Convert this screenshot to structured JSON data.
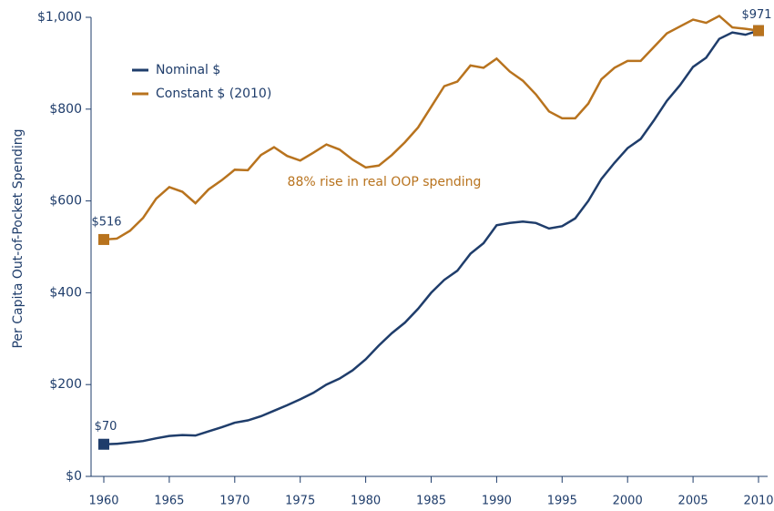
{
  "chart_data": {
    "type": "line",
    "y_label": "Per Capita Out-of-Pocket Spending",
    "x": [
      1960,
      1961,
      1962,
      1963,
      1964,
      1965,
      1966,
      1967,
      1968,
      1969,
      1970,
      1971,
      1972,
      1973,
      1974,
      1975,
      1976,
      1977,
      1978,
      1979,
      1980,
      1981,
      1982,
      1983,
      1984,
      1985,
      1986,
      1987,
      1988,
      1989,
      1990,
      1991,
      1992,
      1993,
      1994,
      1995,
      1996,
      1997,
      1998,
      1999,
      2000,
      2001,
      2002,
      2003,
      2004,
      2005,
      2006,
      2007,
      2008,
      2009,
      2010
    ],
    "series": [
      {
        "name": "Nominal $",
        "color": "#1f3d6b",
        "values": [
          70,
          71,
          74,
          77,
          83,
          88,
          90,
          89,
          98,
          107,
          117,
          122,
          131,
          143,
          155,
          168,
          182,
          200,
          213,
          231,
          255,
          285,
          312,
          335,
          365,
          400,
          428,
          448,
          485,
          508,
          547,
          552,
          555,
          552,
          540,
          545,
          562,
          600,
          648,
          683,
          715,
          735,
          775,
          818,
          852,
          892,
          912,
          953,
          967,
          962,
          971
        ]
      },
      {
        "name": "Constant $ (2010)",
        "color": "#b8731e",
        "values": [
          516,
          518,
          535,
          563,
          605,
          630,
          620,
          595,
          625,
          645,
          668,
          667,
          700,
          717,
          698,
          688,
          705,
          723,
          712,
          690,
          673,
          677,
          700,
          728,
          760,
          805,
          850,
          860,
          895,
          890,
          910,
          882,
          862,
          832,
          795,
          780,
          780,
          812,
          865,
          890,
          905,
          905,
          935,
          965,
          980,
          995,
          988,
          1003,
          978,
          975,
          971
        ]
      }
    ],
    "annotations": [
      "$516",
      "$70",
      "$971",
      "88% rise in real OOP spending"
    ],
    "xlim": [
      1960,
      2010
    ],
    "xticks": [
      1960,
      1965,
      1970,
      1975,
      1980,
      1985,
      1990,
      1995,
      2000,
      2005,
      2010
    ],
    "ylim": [
      0,
      1000
    ],
    "yticks": [
      {
        "value": 0,
        "label": "$0"
      },
      {
        "value": 200,
        "label": "$200"
      },
      {
        "value": 400,
        "label": "$400"
      },
      {
        "value": 600,
        "label": "$600"
      },
      {
        "value": 800,
        "label": "$800"
      },
      {
        "value": 1000,
        "label": "$1,000"
      }
    ],
    "grid": false
  }
}
